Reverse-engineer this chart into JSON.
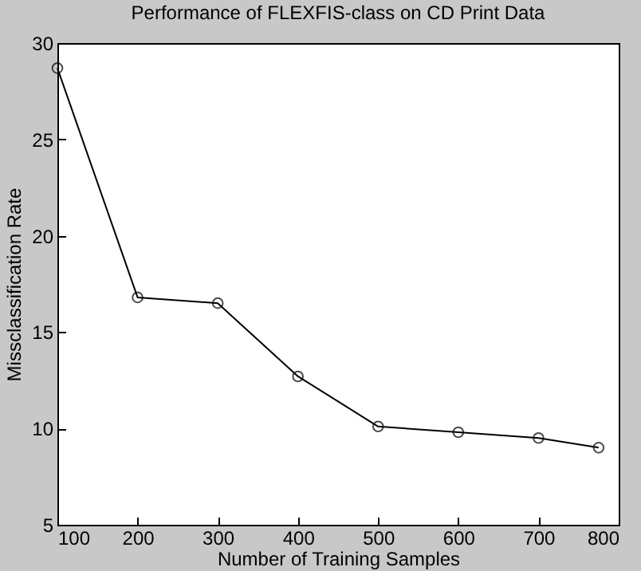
{
  "chart_data": {
    "type": "line",
    "title": "Performance of FLEXFIS-class on CD Print Data",
    "xlabel": "Number of Training Samples",
    "ylabel": "Missclassification Rate",
    "x": [
      100,
      200,
      300,
      400,
      500,
      600,
      700,
      775
    ],
    "series": [
      {
        "color": "#000000",
        "values": [
          28.7,
          16.8,
          16.5,
          12.7,
          10.1,
          9.8,
          9.5,
          9.0
        ]
      }
    ],
    "xlim": [
      100,
      800
    ],
    "xticks": [
      100,
      200,
      300,
      400,
      500,
      600,
      700,
      800
    ],
    "ylim": [
      5,
      30
    ],
    "yticks": [
      5,
      10,
      15,
      20,
      25,
      30
    ],
    "grid": false,
    "legend": false,
    "marker": "circle",
    "line_style": "solid"
  }
}
